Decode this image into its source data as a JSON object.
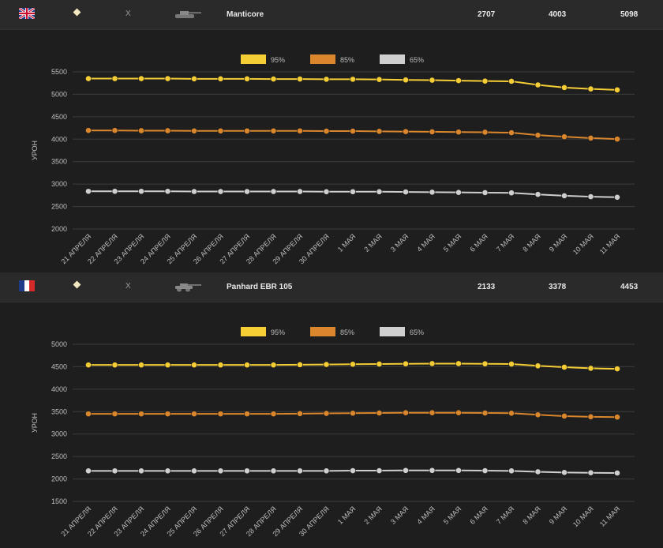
{
  "colors": {
    "p95": "#f5cd35",
    "p85": "#d9862c",
    "p65": "#cfcfcf",
    "grid": "#3c3c3c",
    "text": "#bdbdbd"
  },
  "panels": [
    {
      "tank_name": "Manticore",
      "cross": "X",
      "nation_flag": "uk-flag-icon",
      "tank_icon": "light-tank-icon",
      "values": [
        "2707",
        "4003",
        "5098"
      ]
    },
    {
      "tank_name": "Panhard EBR 105",
      "cross": "X",
      "nation_flag": "france-flag-icon",
      "tank_icon": "light-tank-icon",
      "values": [
        "2133",
        "3378",
        "4453"
      ]
    }
  ],
  "chart_data": [
    {
      "type": "line",
      "ylabel": "УРОН",
      "xlabel": "",
      "ylim": [
        2000,
        5500
      ],
      "yticks": [
        2000,
        2500,
        3000,
        3500,
        4000,
        4500,
        5000,
        5500
      ],
      "legend_position": "top-center",
      "grid": true,
      "categories": [
        "21 АПРЕЛЯ",
        "22 АПРЕЛЯ",
        "23 АПРЕЛЯ",
        "24 АПРЕЛЯ",
        "25 АПРЕЛЯ",
        "26 АПРЕЛЯ",
        "27 АПРЕЛЯ",
        "28 АПРЕЛЯ",
        "29 АПРЕЛЯ",
        "30 АПРЕЛЯ",
        "1 МАЯ",
        "2 МАЯ",
        "3 МАЯ",
        "4 МАЯ",
        "5 МАЯ",
        "6 МАЯ",
        "7 МАЯ",
        "8 МАЯ",
        "9 МАЯ",
        "10 МАЯ",
        "11 МАЯ"
      ],
      "series": [
        {
          "name": "95%",
          "values": [
            5350,
            5350,
            5350,
            5350,
            5345,
            5345,
            5345,
            5340,
            5340,
            5335,
            5335,
            5330,
            5320,
            5315,
            5305,
            5295,
            5290,
            5210,
            5150,
            5120,
            5098
          ]
        },
        {
          "name": "85%",
          "values": [
            4195,
            4195,
            4190,
            4190,
            4185,
            4185,
            4185,
            4185,
            4185,
            4180,
            4180,
            4175,
            4170,
            4165,
            4160,
            4155,
            4145,
            4090,
            4055,
            4025,
            4003
          ]
        },
        {
          "name": "65%",
          "values": [
            2840,
            2840,
            2840,
            2840,
            2835,
            2835,
            2835,
            2835,
            2835,
            2830,
            2830,
            2830,
            2825,
            2820,
            2815,
            2810,
            2805,
            2770,
            2740,
            2720,
            2707
          ]
        }
      ]
    },
    {
      "type": "line",
      "ylabel": "УРОН",
      "xlabel": "",
      "ylim": [
        1500,
        5000
      ],
      "yticks": [
        1500,
        2000,
        2500,
        3000,
        3500,
        4000,
        4500,
        5000
      ],
      "legend_position": "top-center",
      "grid": true,
      "categories": [
        "21 АПРЕЛЯ",
        "22 АПРЕЛЯ",
        "23 АПРЕЛЯ",
        "24 АПРЕЛЯ",
        "25 АПРЕЛЯ",
        "26 АПРЕЛЯ",
        "27 АПРЕЛЯ",
        "28 АПРЕЛЯ",
        "29 АПРЕЛЯ",
        "30 АПРЕЛЯ",
        "1 МАЯ",
        "2 МАЯ",
        "3 МАЯ",
        "4 МАЯ",
        "5 МАЯ",
        "6 МАЯ",
        "7 МАЯ",
        "8 МАЯ",
        "9 МАЯ",
        "10 МАЯ",
        "11 МАЯ"
      ],
      "series": [
        {
          "name": "95%",
          "values": [
            4540,
            4540,
            4540,
            4540,
            4540,
            4540,
            4540,
            4540,
            4545,
            4550,
            4555,
            4560,
            4565,
            4570,
            4570,
            4565,
            4560,
            4520,
            4490,
            4465,
            4453
          ]
        },
        {
          "name": "85%",
          "values": [
            3450,
            3450,
            3450,
            3450,
            3450,
            3450,
            3450,
            3450,
            3455,
            3460,
            3465,
            3470,
            3475,
            3475,
            3475,
            3470,
            3465,
            3430,
            3400,
            3385,
            3378
          ]
        },
        {
          "name": "65%",
          "values": [
            2180,
            2180,
            2180,
            2180,
            2180,
            2180,
            2180,
            2180,
            2180,
            2180,
            2185,
            2185,
            2190,
            2190,
            2190,
            2185,
            2180,
            2160,
            2145,
            2138,
            2133
          ]
        }
      ]
    }
  ]
}
